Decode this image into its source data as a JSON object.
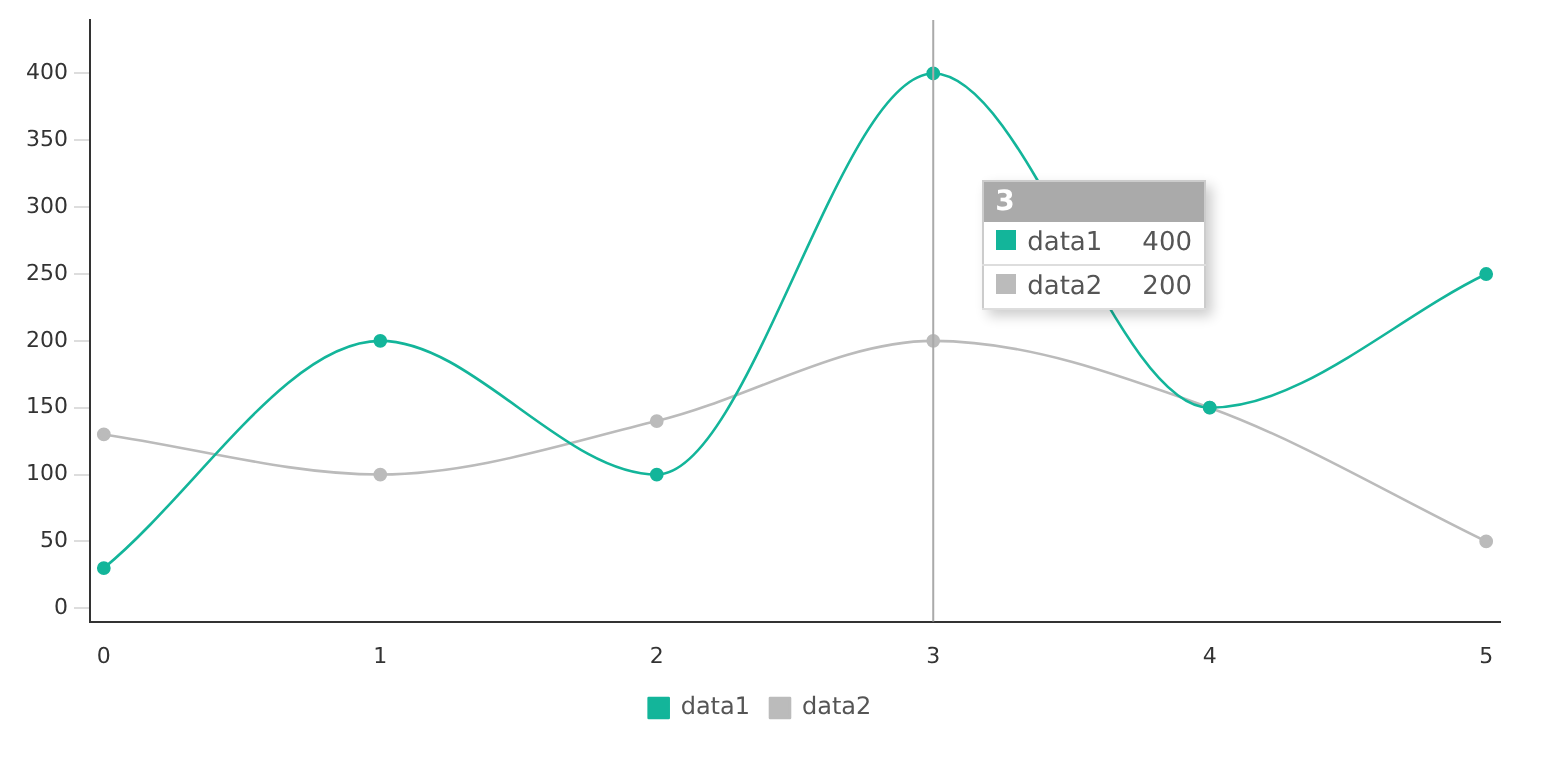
{
  "chart_data": {
    "type": "line",
    "x": [
      0,
      1,
      2,
      3,
      4,
      5
    ],
    "series": [
      {
        "name": "data1",
        "color": "#13b59a",
        "values": [
          30,
          200,
          100,
          400,
          150,
          250
        ]
      },
      {
        "name": "data2",
        "color": "#bbbbbb",
        "values": [
          130,
          100,
          140,
          200,
          150,
          50
        ]
      }
    ],
    "annotations": [
      {
        "text": "3",
        "x": 3
      },
      "data1",
      "400",
      "data2",
      "200"
    ],
    "xlim": [
      -0.05,
      5.05
    ],
    "xticks": [
      0,
      1,
      2,
      3,
      4,
      5
    ],
    "ylim": [
      -10,
      440
    ],
    "yticks": [
      0,
      50,
      100,
      150,
      200,
      250,
      300,
      350,
      400
    ],
    "ref_lines": [
      {
        "axis": "x",
        "value": 3,
        "color": "#aaaaaa"
      }
    ],
    "grid": false,
    "legend": "bottom",
    "marker": "circle",
    "line_style": "solid"
  }
}
